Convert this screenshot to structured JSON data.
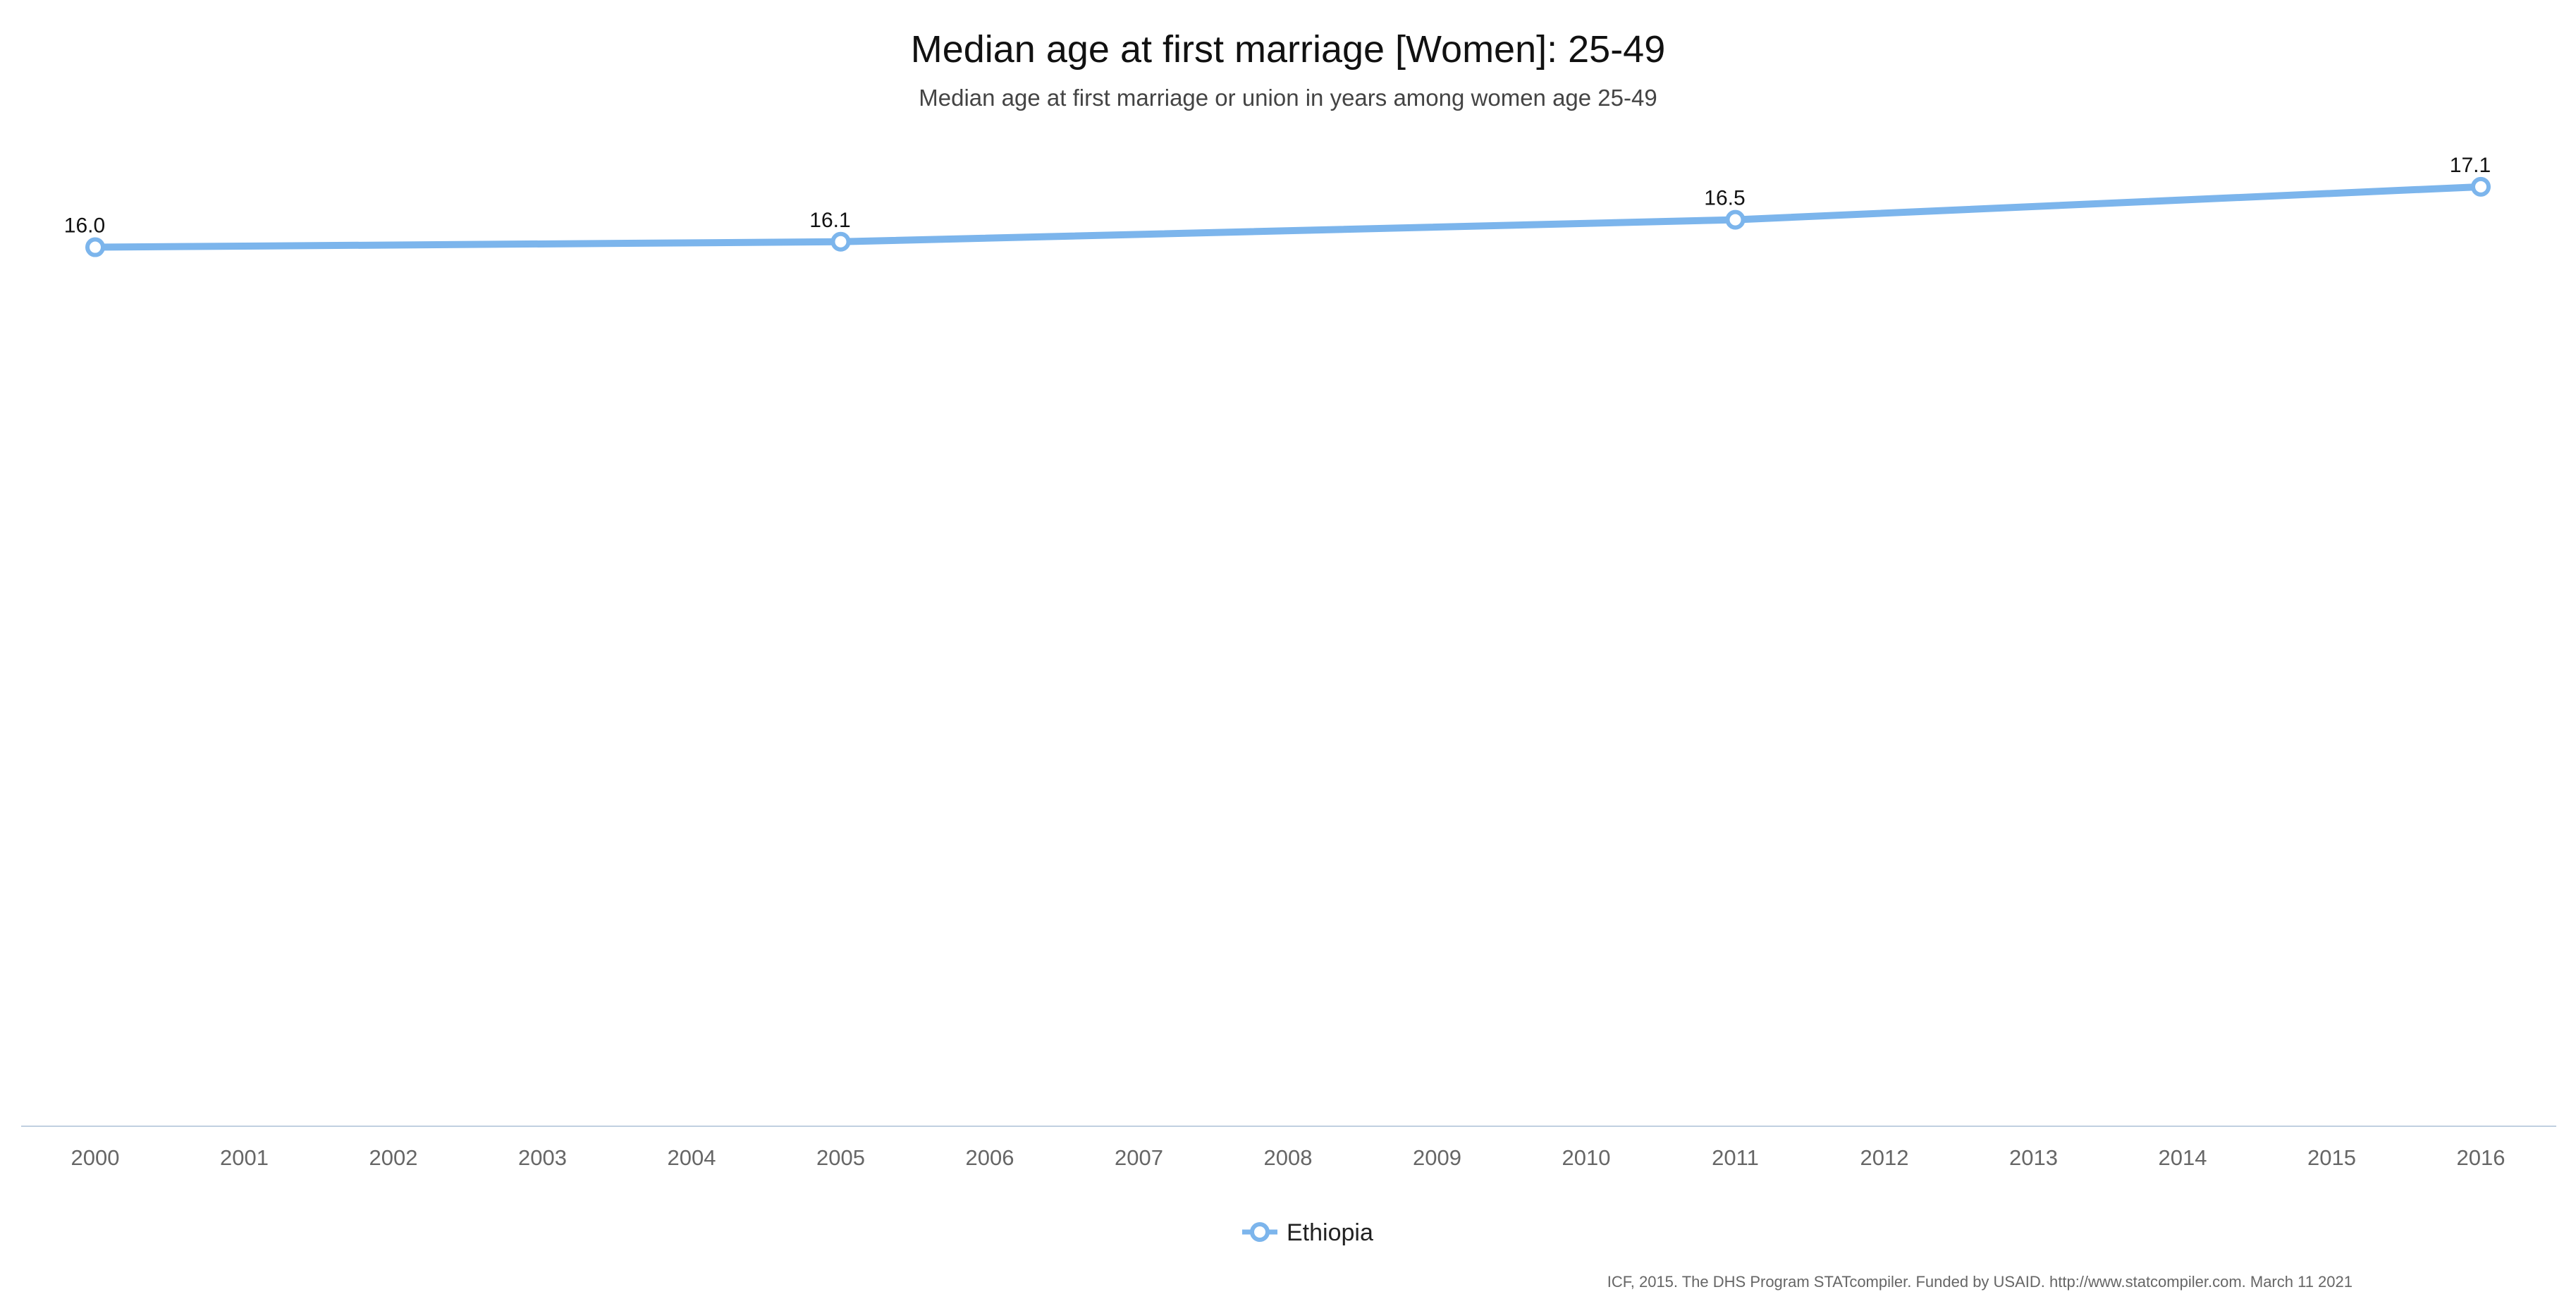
{
  "chart_data": {
    "type": "line",
    "title": "Median age at first marriage [Women]: 25-49",
    "subtitle": "Median age at first marriage or union in years among women age 25-49",
    "x_categories": [
      "2000",
      "2001",
      "2002",
      "2003",
      "2004",
      "2005",
      "2006",
      "2007",
      "2008",
      "2009",
      "2010",
      "2011",
      "2012",
      "2013",
      "2014",
      "2015",
      "2016"
    ],
    "series": [
      {
        "name": "Ethiopia",
        "color": "#7cb5ec",
        "points": [
          {
            "x": "2000",
            "y": 16.0,
            "label": "16.0"
          },
          {
            "x": "2005",
            "y": 16.1,
            "label": "16.1"
          },
          {
            "x": "2011",
            "y": 16.5,
            "label": "16.5"
          },
          {
            "x": "2016",
            "y": 17.1,
            "label": "17.1"
          }
        ]
      }
    ],
    "y_axis_visible": false,
    "grid": false,
    "legend_position": "bottom-center",
    "credits": "ICF, 2015. The DHS Program STATcompiler. Funded by USAID. http://www.statcompiler.com. March 11 2021"
  }
}
